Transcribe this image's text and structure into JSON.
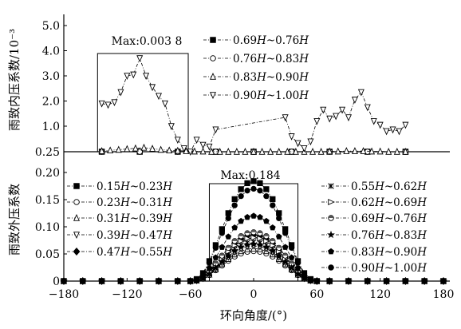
{
  "chart_data": {
    "type": "line",
    "x_axis": {
      "label": "环向角度/(°)",
      "range": [
        -180,
        180
      ],
      "ticks": [
        -180,
        -120,
        -60,
        0,
        60,
        120,
        180
      ]
    },
    "upper": {
      "ylabel": "雨致内压系数/10⁻³",
      "y_ticks": [
        "0.25",
        "1.0",
        "2.0",
        "3.0",
        "4.0",
        "5.0"
      ],
      "annotation": "Max:0.003 8",
      "series": [
        {
          "name": "0.69H~0.76H",
          "marker": "square-filled",
          "x": [
            -144,
            -108,
            -72,
            -36,
            0,
            36,
            72,
            108,
            144
          ],
          "y": [
            0.25,
            0.25,
            0.25,
            0.25,
            0.25,
            0.25,
            0.25,
            0.25,
            0.25
          ]
        },
        {
          "name": "0.76H~0.83H",
          "marker": "circle-open",
          "x": [
            -144,
            -108,
            -72,
            -36,
            0,
            36,
            72,
            108,
            144
          ],
          "y": [
            0.25,
            0.25,
            0.25,
            0.25,
            0.25,
            0.25,
            0.25,
            0.25,
            0.25
          ]
        },
        {
          "name": "0.83H~0.90H",
          "marker": "triangle-up-open",
          "x": [
            -144,
            -136,
            -128,
            -120,
            -112,
            -104,
            -96,
            -88,
            -80,
            -72,
            -64,
            -56,
            -48,
            -40,
            -32,
            -24,
            -16,
            -8,
            0,
            8,
            16,
            24,
            32,
            40,
            48,
            56,
            64,
            72,
            80,
            88,
            96,
            104,
            112,
            120,
            128,
            136,
            144
          ],
          "y": [
            0.27,
            0.29,
            0.31,
            0.33,
            0.35,
            0.37,
            0.34,
            0.31,
            0.29,
            0.28,
            0.27,
            0.26,
            0.26,
            0.25,
            0.25,
            0.25,
            0.25,
            0.25,
            0.25,
            0.25,
            0.25,
            0.25,
            0.25,
            0.25,
            0.25,
            0.25,
            0.25,
            0.26,
            0.26,
            0.27,
            0.27,
            0.27,
            0.26,
            0.26,
            0.25,
            0.25,
            0.25
          ]
        },
        {
          "name": "0.90H~1.00H",
          "marker": "triangle-down-open",
          "x": [
            -144,
            -138,
            -132,
            -126,
            -120,
            -114,
            -108,
            -102,
            -96,
            -90,
            -84,
            -78,
            -72,
            -66,
            -60,
            -54,
            -48,
            -42,
            -36,
            30,
            36,
            42,
            48,
            54,
            60,
            66,
            72,
            78,
            84,
            90,
            96,
            102,
            108,
            114,
            120,
            126,
            132,
            138,
            144
          ],
          "y": [
            1.9,
            1.85,
            1.95,
            2.35,
            3.0,
            3.05,
            3.7,
            3.0,
            2.55,
            2.2,
            1.9,
            1.0,
            0.6,
            0.35,
            0.25,
            0.6,
            0.45,
            0.4,
            0.9,
            1.35,
            0.7,
            0.5,
            0.35,
            0.55,
            1.2,
            1.65,
            1.3,
            1.4,
            1.65,
            1.35,
            2.05,
            2.35,
            1.75,
            1.2,
            1.05,
            0.85,
            0.9,
            0.85,
            1.05
          ]
        }
      ]
    },
    "lower": {
      "ylabel": "雨致外压系数",
      "y_ticks": [
        "0",
        "0.05",
        "0.10",
        "0.15",
        "0.20"
      ],
      "annotation": "Max:0.184",
      "series": [
        {
          "name": "0.15H~0.23H",
          "marker": "square-filled",
          "peak": 0.184
        },
        {
          "name": "0.23H~0.31H",
          "marker": "circle-open",
          "peak": 0.055
        },
        {
          "name": "0.31H~0.39H",
          "marker": "triangle-up-open",
          "peak": 0.06
        },
        {
          "name": "0.39H~0.47H",
          "marker": "triangle-down-open",
          "peak": 0.065
        },
        {
          "name": "0.47H~0.55H",
          "marker": "diamond-filled",
          "peak": 0.085
        },
        {
          "name": "0.55H~0.62H",
          "marker": "x-star",
          "peak": 0.072
        },
        {
          "name": "0.62H~0.69H",
          "marker": "triangle-right-open",
          "peak": 0.08
        },
        {
          "name": "0.69H~0.76H",
          "marker": "circle-half",
          "peak": 0.09
        },
        {
          "name": "0.76H~0.83H",
          "marker": "star-filled",
          "peak": 0.068
        },
        {
          "name": "0.83H~0.90H",
          "marker": "pentagon-filled",
          "peak": 0.12
        },
        {
          "name": "0.90H~1.00H",
          "marker": "circle-dark",
          "peak": 0.17
        }
      ],
      "x": [
        -180,
        -162,
        -144,
        -126,
        -108,
        -90,
        -72,
        -60,
        -54,
        -48,
        -42,
        -36,
        -30,
        -24,
        -18,
        -12,
        -6,
        0,
        6,
        12,
        18,
        24,
        30,
        36,
        42,
        48,
        54,
        60,
        72,
        90,
        108,
        126,
        144,
        162,
        180
      ],
      "shape": [
        0,
        0,
        0,
        0,
        0,
        0,
        0,
        0,
        0.02,
        0.08,
        0.2,
        0.36,
        0.52,
        0.68,
        0.82,
        0.92,
        0.98,
        1,
        0.98,
        0.92,
        0.82,
        0.68,
        0.52,
        0.36,
        0.2,
        0.08,
        0.02,
        0,
        0,
        0,
        0,
        0,
        0,
        0,
        0
      ]
    }
  }
}
